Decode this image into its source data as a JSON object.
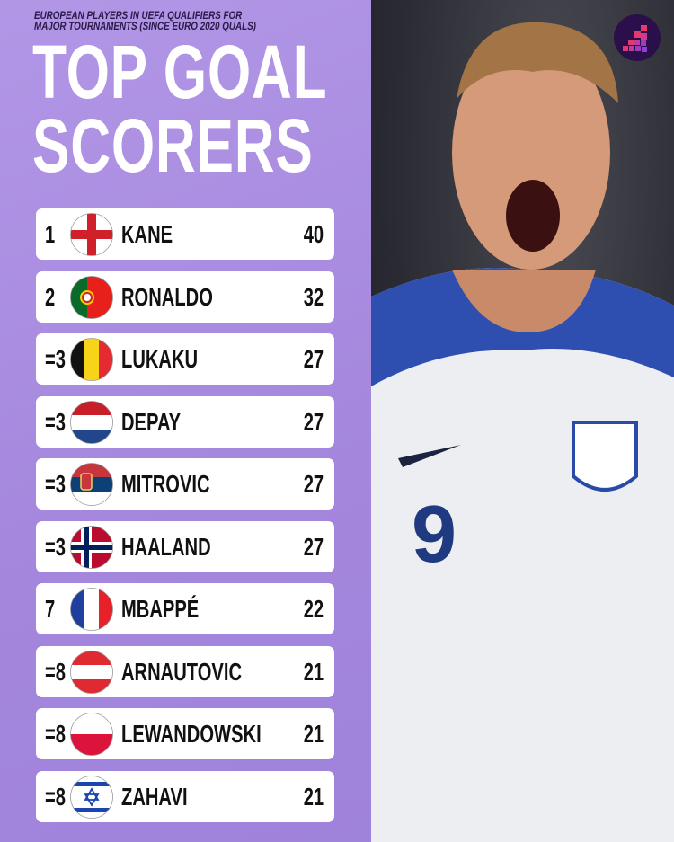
{
  "header": {
    "subtitle": "EUROPEAN PLAYERS IN UEFA QUALIFIERS FOR\nMAJOR TOURNAMENTS (SINCE EURO 2020 QUALS)",
    "title_line1": "TOP GOAL",
    "title_line2": "SCORERS"
  },
  "rows": [
    {
      "rank": "1",
      "name": "KANE",
      "goals": "40",
      "flag": "england-flag-icon"
    },
    {
      "rank": "2",
      "name": "RONALDO",
      "goals": "32",
      "flag": "portugal-flag-icon"
    },
    {
      "rank": "=3",
      "name": "LUKAKU",
      "goals": "27",
      "flag": "belgium-flag-icon"
    },
    {
      "rank": "=3",
      "name": "DEPAY",
      "goals": "27",
      "flag": "netherlands-flag-icon"
    },
    {
      "rank": "=3",
      "name": "MITROVIC",
      "goals": "27",
      "flag": "serbia-flag-icon"
    },
    {
      "rank": "=3",
      "name": "HAALAND",
      "goals": "27",
      "flag": "norway-flag-icon"
    },
    {
      "rank": "7",
      "name": "MBAPPÉ",
      "goals": "22",
      "flag": "france-flag-icon"
    },
    {
      "rank": "=8",
      "name": "ARNAUTOVIC",
      "goals": "21",
      "flag": "austria-flag-icon"
    },
    {
      "rank": "=8",
      "name": "LEWANDOWSKI",
      "goals": "21",
      "flag": "poland-flag-icon"
    },
    {
      "rank": "=8",
      "name": "ZAHAVI",
      "goals": "21",
      "flag": "israel-flag-icon"
    }
  ],
  "colors": {
    "background": "#a98be0",
    "row": "#ffffff",
    "text": "#111111"
  }
}
